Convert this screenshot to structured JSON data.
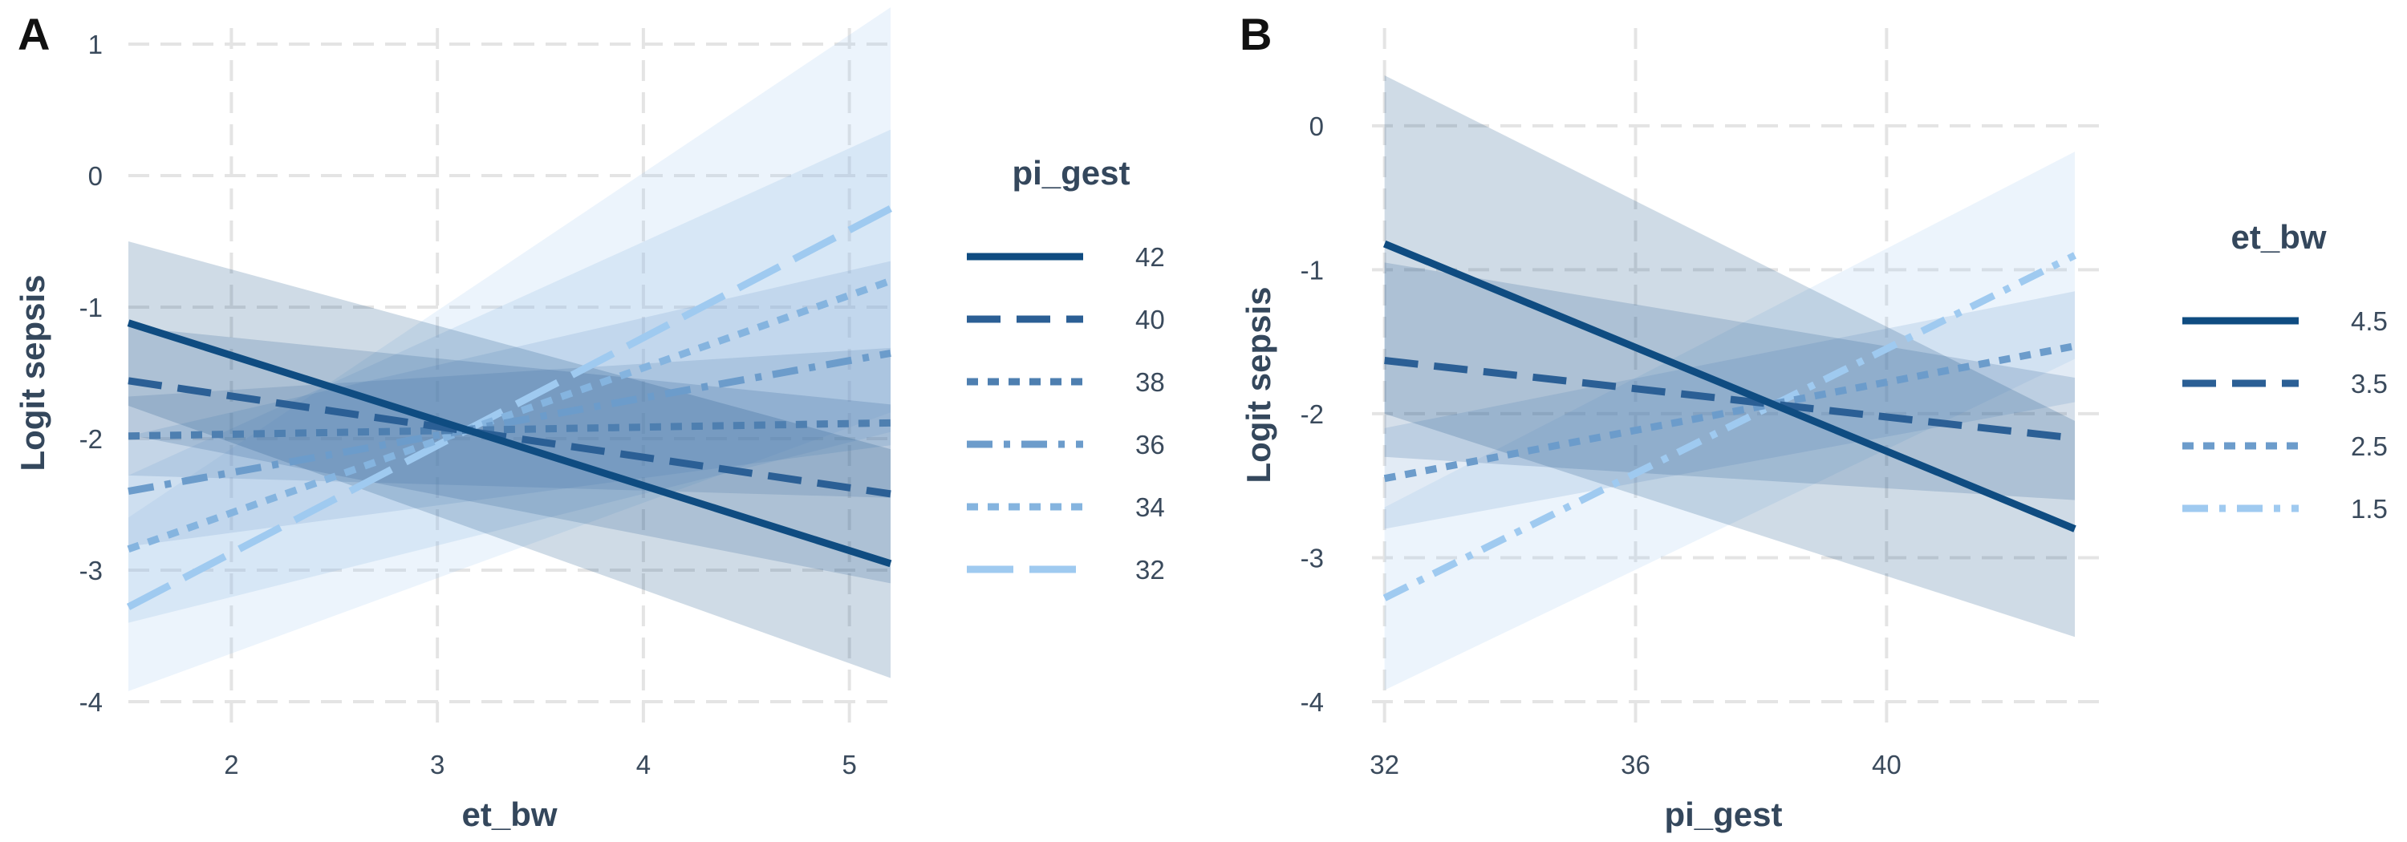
{
  "chart_data": [
    {
      "panel": "A",
      "type": "line",
      "xlabel": "et_bw",
      "ylabel": "Logit sepsis",
      "xlim": [
        1.5,
        5.2
      ],
      "ylim": [
        -4,
        1
      ],
      "x_ticks": [
        2,
        3,
        4,
        5
      ],
      "y_ticks": [
        -4,
        -3,
        -2,
        -1,
        0,
        1
      ],
      "grid": true,
      "legend": {
        "title": "pi_gest",
        "position": "right"
      },
      "series": [
        {
          "name": "42",
          "x": [
            1.5,
            5.2
          ],
          "y": [
            -1.12,
            -2.95
          ],
          "lower": [
            -1.75,
            -3.82
          ],
          "upper": [
            -0.5,
            -2.08
          ],
          "color": "#0f4c81",
          "linestyle": "solid"
        },
        {
          "name": "40",
          "x": [
            1.5,
            5.2
          ],
          "y": [
            -1.56,
            -2.42
          ],
          "lower": [
            -1.97,
            -3.1
          ],
          "upper": [
            -1.15,
            -1.74
          ],
          "color": "#2b5f95",
          "linestyle": "dashed"
        },
        {
          "name": "38",
          "x": [
            1.5,
            5.2
          ],
          "y": [
            -1.98,
            -1.88
          ],
          "lower": [
            -2.28,
            -2.45
          ],
          "upper": [
            -1.68,
            -1.31
          ],
          "color": "#4e7fb0",
          "linestyle": "dotted"
        },
        {
          "name": "36",
          "x": [
            1.5,
            5.2
          ],
          "y": [
            -2.4,
            -1.35
          ],
          "lower": [
            -2.82,
            -2.05
          ],
          "upper": [
            -1.98,
            -0.65
          ],
          "color": "#6c9ccb",
          "linestyle": "dotdash"
        },
        {
          "name": "34",
          "x": [
            1.5,
            5.2
          ],
          "y": [
            -2.84,
            -0.8
          ],
          "lower": [
            -3.4,
            -1.95
          ],
          "upper": [
            -2.28,
            0.35
          ],
          "color": "#85b4df",
          "linestyle": "dotted"
        },
        {
          "name": "32",
          "x": [
            1.5,
            5.2
          ],
          "y": [
            -3.28,
            -0.25
          ],
          "lower": [
            -3.92,
            -1.8
          ],
          "upper": [
            -2.6,
            1.28
          ],
          "color": "#9fcaf0",
          "linestyle": "longdash"
        }
      ]
    },
    {
      "panel": "B",
      "type": "line",
      "xlabel": "pi_gest",
      "ylabel": "Logit sepsis",
      "xlim": [
        31.8,
        43
      ],
      "ylim": [
        -4,
        0.4
      ],
      "x_ticks": [
        32,
        36,
        40
      ],
      "y_ticks": [
        -4,
        -3,
        -2,
        -1,
        0
      ],
      "grid": true,
      "legend": {
        "title": "et_bw",
        "position": "right"
      },
      "series": [
        {
          "name": "4.5",
          "x": [
            32,
            43
          ],
          "y": [
            -0.82,
            -2.8
          ],
          "lower": [
            -2.0,
            -3.55
          ],
          "upper": [
            0.35,
            -2.05
          ],
          "color": "#0f4c81",
          "linestyle": "solid"
        },
        {
          "name": "3.5",
          "x": [
            32,
            43
          ],
          "y": [
            -1.63,
            -2.17
          ],
          "lower": [
            -2.3,
            -2.6
          ],
          "upper": [
            -0.95,
            -1.75
          ],
          "color": "#2b5f95",
          "linestyle": "dashed"
        },
        {
          "name": "2.5",
          "x": [
            32,
            43
          ],
          "y": [
            -2.45,
            -1.53
          ],
          "lower": [
            -2.8,
            -1.92
          ],
          "upper": [
            -2.1,
            -1.15
          ],
          "color": "#6c9ccb",
          "linestyle": "dotted"
        },
        {
          "name": "1.5",
          "x": [
            32,
            43
          ],
          "y": [
            -3.28,
            -0.9
          ],
          "lower": [
            -3.92,
            -1.62
          ],
          "upper": [
            -2.65,
            -0.18
          ],
          "color": "#9fcaf0",
          "linestyle": "dotdash"
        }
      ]
    }
  ]
}
